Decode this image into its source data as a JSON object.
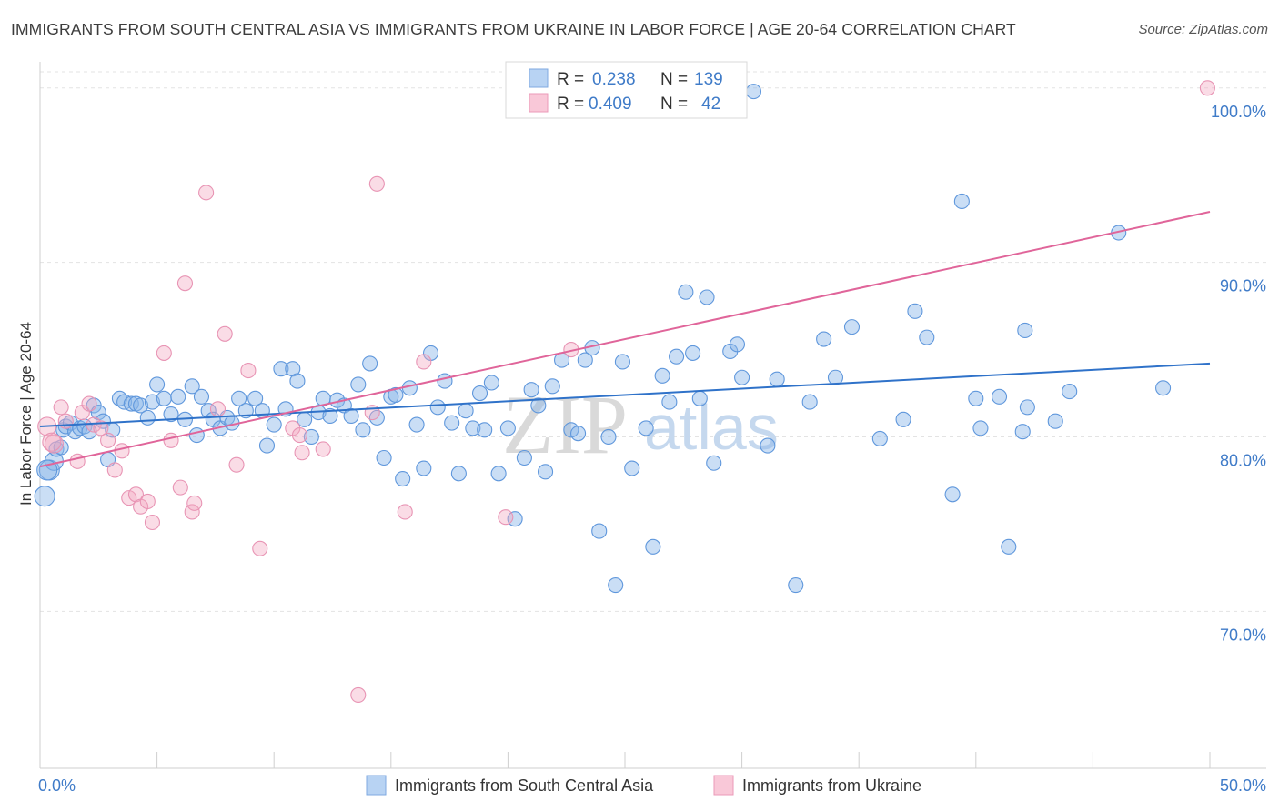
{
  "title": "IMMIGRANTS FROM SOUTH CENTRAL ASIA VS IMMIGRANTS FROM UKRAINE IN LABOR FORCE | AGE 20-64 CORRELATION CHART",
  "source": "Source: ZipAtlas.com",
  "watermark": {
    "zip": "ZIP",
    "atlas": "atlas"
  },
  "legend_stats": [
    {
      "r_label": "R =",
      "r_value": "0.238",
      "n_label": "N =",
      "n_value": "139"
    },
    {
      "r_label": "R =",
      "r_value": "0.409",
      "n_label": "N =",
      "n_value": "42"
    }
  ],
  "chart_data": {
    "type": "scatter",
    "title": "IMMIGRANTS FROM SOUTH CENTRAL ASIA VS IMMIGRANTS FROM UKRAINE IN LABOR FORCE | AGE 20-64 CORRELATION CHART",
    "xlabel": "",
    "ylabel": "In Labor Force | Age 20-64",
    "xlim": [
      0,
      50
    ],
    "ylim": [
      61.0,
      101.5
    ],
    "x_tick_labels": [
      "0.0%",
      "50.0%"
    ],
    "y_ticks": [
      70,
      80,
      90,
      100
    ],
    "y_tick_labels": [
      "70.0%",
      "80.0%",
      "90.0%",
      "100.0%"
    ],
    "grid": true,
    "legend_position": "top-center",
    "series": [
      {
        "name": "Immigrants from South Central Asia",
        "color": "#8ab6e8",
        "line_color": "#2f72c9",
        "trend": {
          "x": [
            0,
            50
          ],
          "y": [
            80.6,
            84.2
          ]
        },
        "points": [
          [
            0.2,
            76.6
          ],
          [
            0.4,
            78.1
          ],
          [
            0.6,
            78.6
          ],
          [
            0.7,
            79.3
          ],
          [
            0.9,
            79.4
          ],
          [
            1.0,
            80.4
          ],
          [
            1.1,
            80.6
          ],
          [
            1.3,
            80.8
          ],
          [
            1.5,
            80.3
          ],
          [
            1.7,
            80.5
          ],
          [
            1.9,
            80.6
          ],
          [
            2.1,
            80.3
          ],
          [
            2.3,
            81.8
          ],
          [
            2.5,
            81.4
          ],
          [
            2.7,
            80.9
          ],
          [
            2.9,
            78.7
          ],
          [
            3.1,
            80.4
          ],
          [
            3.4,
            82.2
          ],
          [
            3.6,
            82.0
          ],
          [
            3.9,
            81.9
          ],
          [
            4.1,
            81.9
          ],
          [
            4.3,
            81.8
          ],
          [
            4.6,
            81.1
          ],
          [
            4.8,
            82.0
          ],
          [
            5.0,
            83.0
          ],
          [
            5.3,
            82.2
          ],
          [
            5.6,
            81.3
          ],
          [
            5.9,
            82.3
          ],
          [
            6.2,
            81.0
          ],
          [
            6.5,
            82.9
          ],
          [
            6.7,
            80.1
          ],
          [
            6.9,
            82.3
          ],
          [
            7.2,
            81.5
          ],
          [
            7.4,
            81.0
          ],
          [
            7.7,
            80.5
          ],
          [
            8.0,
            81.1
          ],
          [
            8.2,
            80.8
          ],
          [
            8.5,
            82.2
          ],
          [
            8.8,
            81.5
          ],
          [
            9.2,
            82.2
          ],
          [
            9.5,
            81.5
          ],
          [
            9.7,
            79.5
          ],
          [
            10.0,
            80.7
          ],
          [
            10.3,
            83.9
          ],
          [
            10.5,
            81.6
          ],
          [
            10.8,
            83.9
          ],
          [
            11.0,
            83.2
          ],
          [
            11.3,
            81.0
          ],
          [
            11.6,
            80.0
          ],
          [
            11.9,
            81.4
          ],
          [
            12.1,
            82.2
          ],
          [
            12.4,
            81.2
          ],
          [
            12.7,
            82.1
          ],
          [
            13.0,
            81.8
          ],
          [
            13.3,
            81.2
          ],
          [
            13.6,
            83.0
          ],
          [
            13.8,
            80.4
          ],
          [
            14.1,
            84.2
          ],
          [
            14.4,
            81.1
          ],
          [
            14.7,
            78.8
          ],
          [
            15.0,
            82.3
          ],
          [
            15.2,
            82.4
          ],
          [
            15.5,
            77.6
          ],
          [
            15.8,
            82.8
          ],
          [
            16.1,
            80.7
          ],
          [
            16.4,
            78.2
          ],
          [
            16.7,
            84.8
          ],
          [
            17.0,
            81.7
          ],
          [
            17.3,
            83.2
          ],
          [
            17.6,
            80.8
          ],
          [
            17.9,
            77.9
          ],
          [
            18.2,
            81.5
          ],
          [
            18.5,
            80.5
          ],
          [
            18.8,
            82.5
          ],
          [
            19.0,
            80.4
          ],
          [
            19.3,
            83.1
          ],
          [
            19.6,
            77.9
          ],
          [
            20.0,
            80.5
          ],
          [
            20.3,
            75.3
          ],
          [
            20.7,
            78.8
          ],
          [
            21.0,
            82.7
          ],
          [
            21.3,
            81.8
          ],
          [
            21.6,
            78.0
          ],
          [
            21.9,
            82.9
          ],
          [
            22.3,
            84.4
          ],
          [
            22.7,
            80.4
          ],
          [
            23.0,
            80.2
          ],
          [
            23.3,
            84.4
          ],
          [
            23.6,
            85.1
          ],
          [
            23.9,
            74.6
          ],
          [
            24.3,
            80.0
          ],
          [
            24.6,
            71.5
          ],
          [
            24.9,
            84.3
          ],
          [
            25.3,
            78.2
          ],
          [
            25.9,
            80.5
          ],
          [
            26.2,
            73.7
          ],
          [
            26.6,
            83.5
          ],
          [
            26.9,
            82.0
          ],
          [
            27.2,
            84.6
          ],
          [
            27.6,
            88.3
          ],
          [
            27.9,
            84.8
          ],
          [
            28.2,
            82.2
          ],
          [
            28.5,
            88.0
          ],
          [
            28.8,
            78.5
          ],
          [
            29.5,
            84.9
          ],
          [
            29.8,
            85.3
          ],
          [
            30.0,
            83.4
          ],
          [
            31.1,
            79.5
          ],
          [
            31.5,
            83.3
          ],
          [
            32.3,
            71.5
          ],
          [
            32.9,
            82.0
          ],
          [
            33.5,
            85.6
          ],
          [
            34.0,
            83.4
          ],
          [
            34.7,
            86.3
          ],
          [
            35.9,
            79.9
          ],
          [
            36.9,
            81.0
          ],
          [
            37.4,
            87.2
          ],
          [
            37.9,
            85.7
          ],
          [
            39.0,
            76.7
          ],
          [
            39.4,
            93.5
          ],
          [
            40.0,
            82.2
          ],
          [
            40.2,
            80.5
          ],
          [
            41.0,
            82.3
          ],
          [
            41.4,
            73.7
          ],
          [
            42.0,
            80.3
          ],
          [
            42.1,
            86.1
          ],
          [
            42.2,
            81.7
          ],
          [
            43.4,
            80.9
          ],
          [
            44.0,
            82.6
          ],
          [
            46.1,
            91.7
          ],
          [
            48.0,
            82.8
          ],
          [
            30.5,
            99.8
          ],
          [
            0.3,
            78.1
          ]
        ]
      },
      {
        "name": "Immigrants from Ukraine",
        "color": "#f2a7c0",
        "line_color": "#e0659a",
        "trend": {
          "x": [
            0,
            50
          ],
          "y": [
            78.3,
            92.9
          ]
        },
        "points": [
          [
            0.3,
            80.6
          ],
          [
            0.6,
            79.6
          ],
          [
            0.9,
            81.7
          ],
          [
            1.1,
            80.9
          ],
          [
            1.6,
            78.6
          ],
          [
            1.8,
            81.4
          ],
          [
            2.1,
            81.9
          ],
          [
            2.3,
            80.7
          ],
          [
            2.6,
            80.5
          ],
          [
            2.9,
            79.8
          ],
          [
            3.2,
            78.1
          ],
          [
            3.5,
            79.2
          ],
          [
            3.8,
            76.5
          ],
          [
            4.1,
            76.7
          ],
          [
            4.3,
            76.0
          ],
          [
            4.6,
            76.3
          ],
          [
            4.8,
            75.1
          ],
          [
            5.3,
            84.8
          ],
          [
            5.6,
            79.8
          ],
          [
            6.0,
            77.1
          ],
          [
            6.2,
            88.8
          ],
          [
            6.5,
            75.7
          ],
          [
            6.6,
            76.2
          ],
          [
            7.1,
            94.0
          ],
          [
            7.6,
            81.6
          ],
          [
            7.9,
            85.9
          ],
          [
            8.4,
            78.4
          ],
          [
            8.9,
            83.8
          ],
          [
            9.4,
            73.6
          ],
          [
            10.8,
            80.5
          ],
          [
            11.1,
            80.1
          ],
          [
            12.1,
            79.3
          ],
          [
            13.6,
            65.2
          ],
          [
            14.2,
            81.4
          ],
          [
            14.4,
            94.5
          ],
          [
            15.6,
            75.7
          ],
          [
            16.4,
            84.3
          ],
          [
            19.9,
            75.4
          ],
          [
            22.7,
            85.0
          ],
          [
            49.9,
            100.0
          ],
          [
            0.5,
            79.7
          ],
          [
            11.2,
            79.1
          ]
        ]
      }
    ]
  }
}
